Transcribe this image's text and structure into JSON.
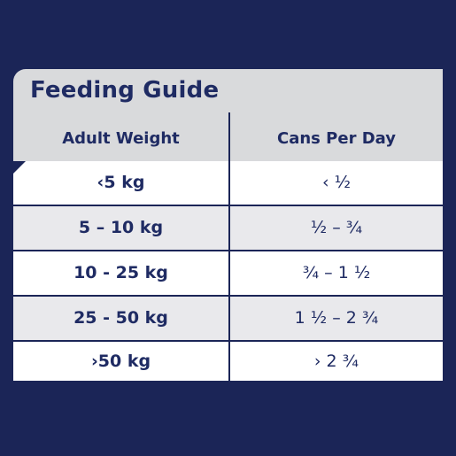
{
  "title": "Feeding Guide",
  "headers": {
    "left": "Adult Weight",
    "right": "Cans Per Day"
  },
  "rows": [
    {
      "weight": "‹5 kg",
      "cans": "‹ ½"
    },
    {
      "weight": "5 – 10 kg",
      "cans": "½ – ¾"
    },
    {
      "weight": "10 - 25 kg",
      "cans": "¾ – 1 ½"
    },
    {
      "weight": "25 - 50 kg",
      "cans": "1 ½ – 2 ¾"
    },
    {
      "weight": "›50 kg",
      "cans": "› 2 ¾"
    }
  ],
  "colors": {
    "background": "#1b2557",
    "header_band": "#d9dadc",
    "row_light": "#ffffff",
    "row_alt": "#e9e9ec",
    "text": "#1f2b63"
  }
}
